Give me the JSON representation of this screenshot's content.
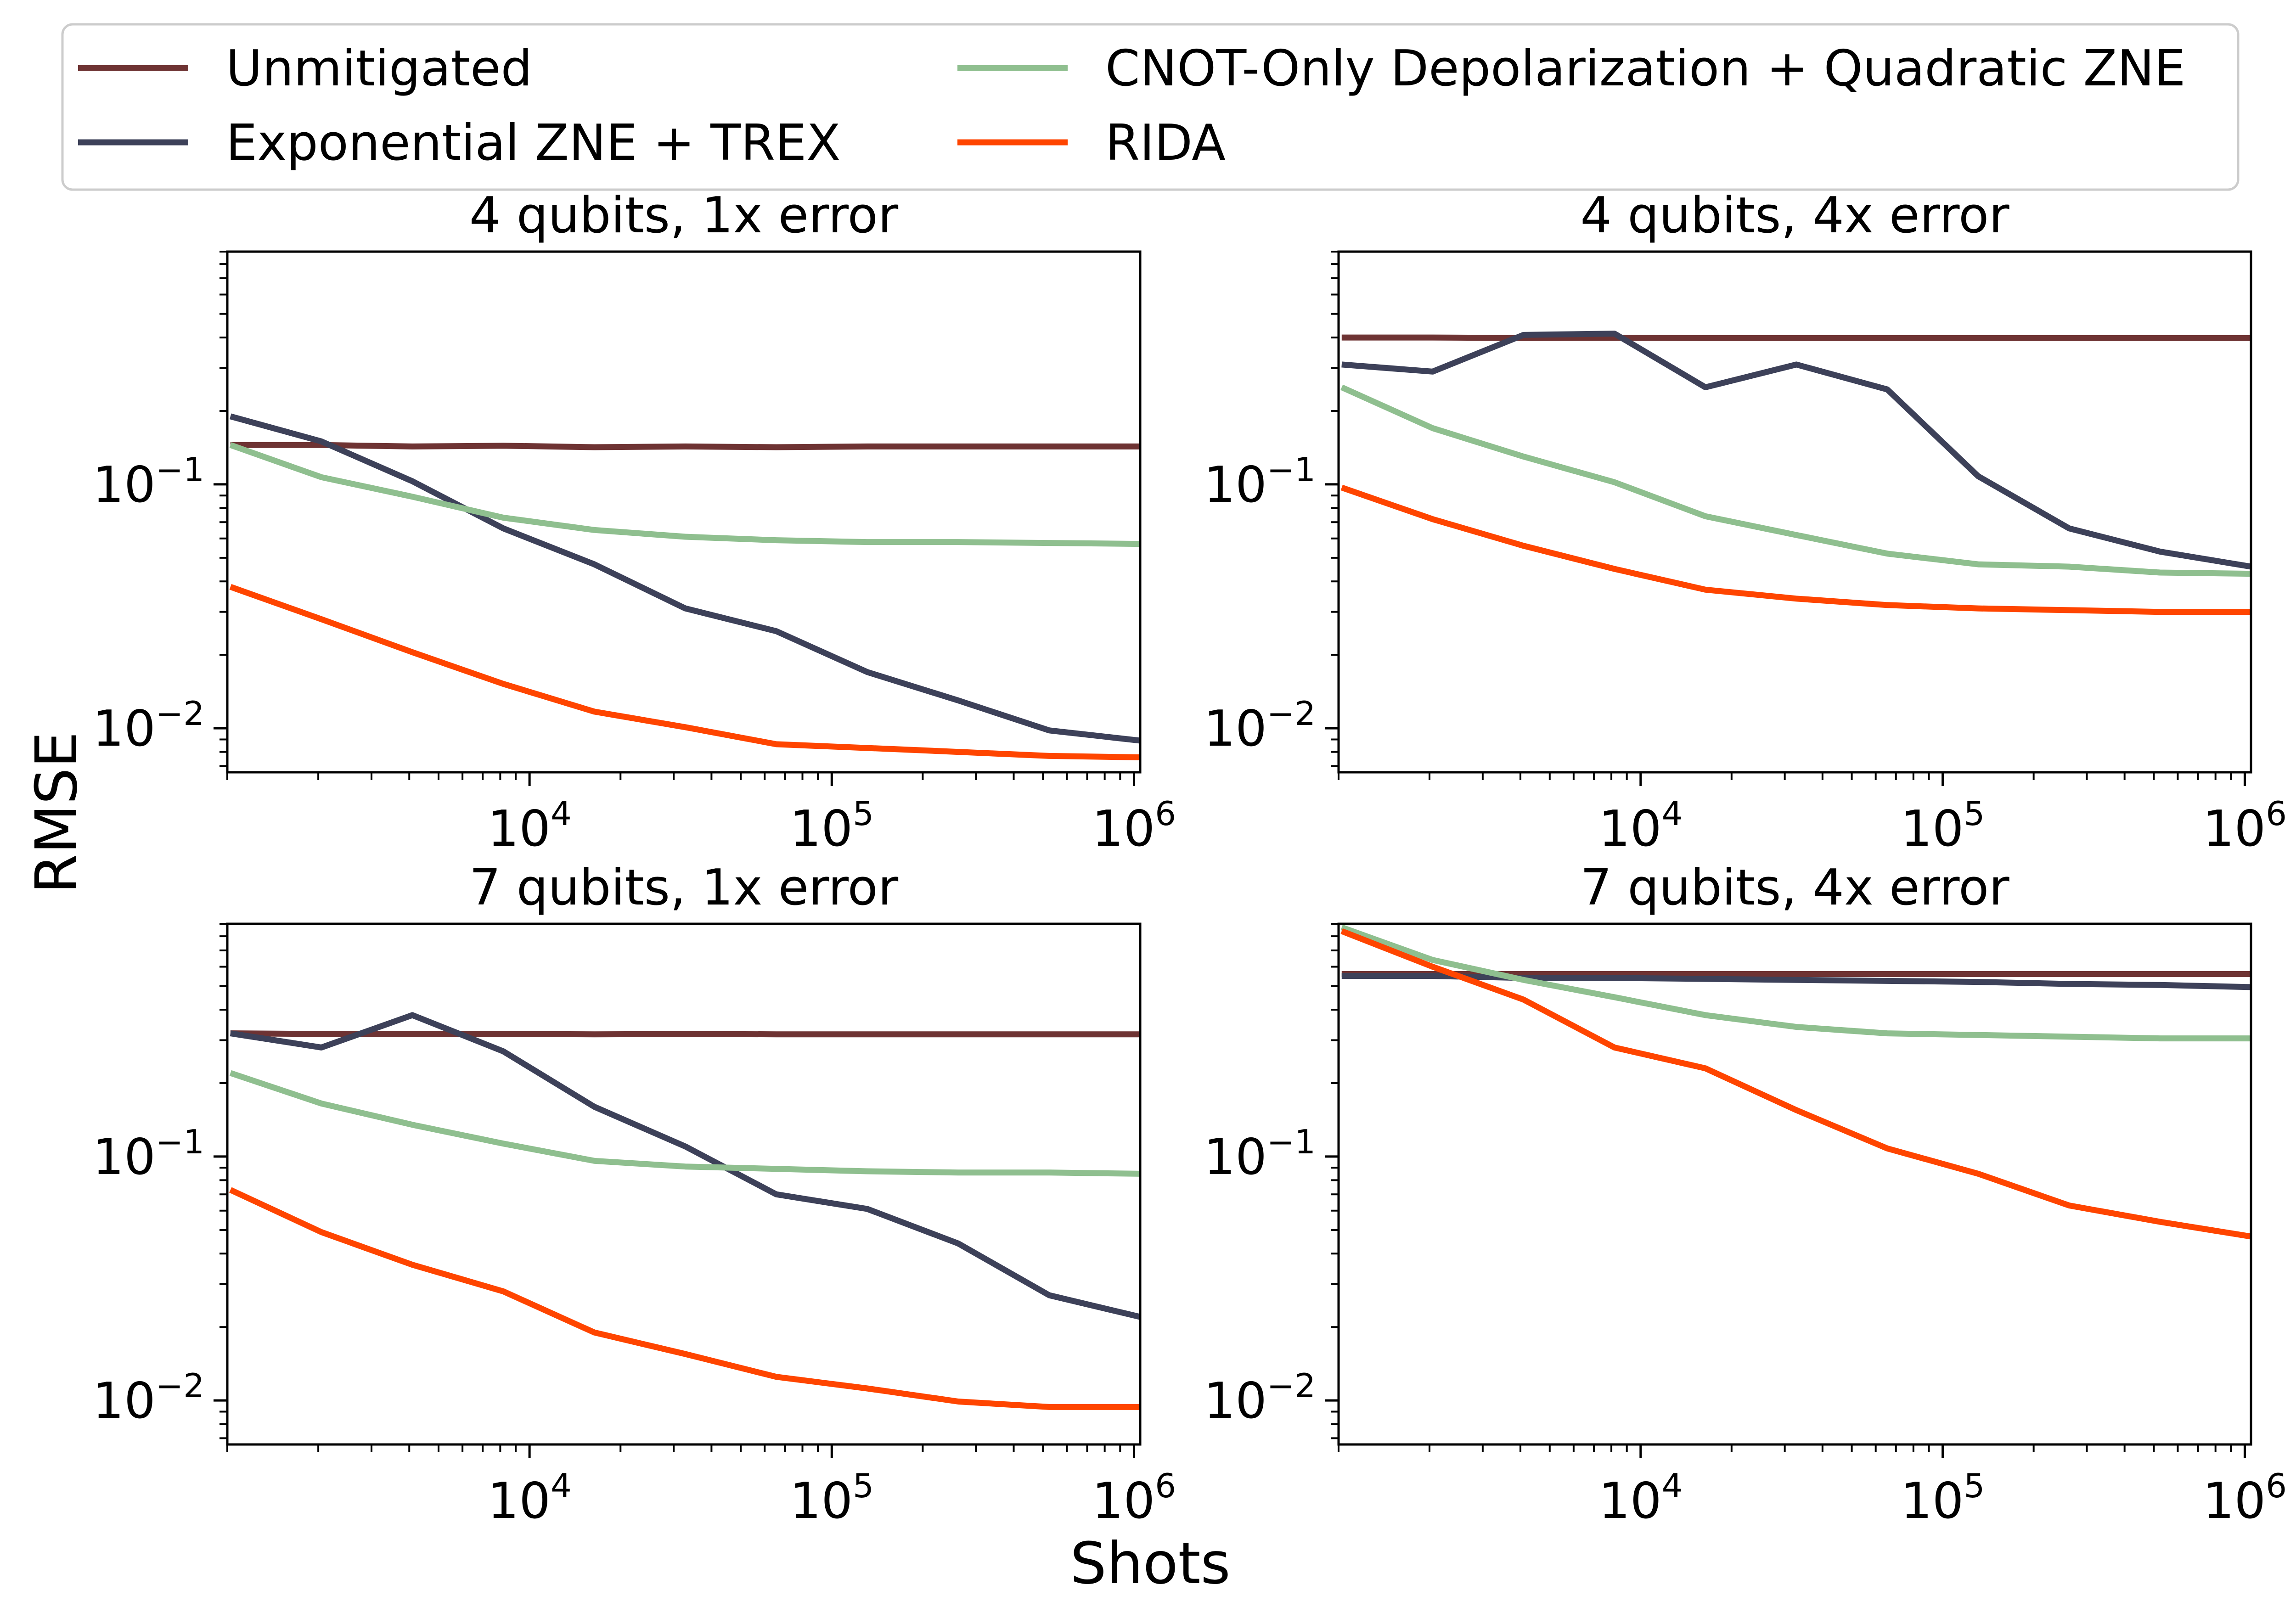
{
  "figure": {
    "xlabel": "Shots",
    "ylabel": "RMSE"
  },
  "legend": {
    "placement": "top",
    "entries": [
      {
        "name": "Unmitigated",
        "color": "#6e3333"
      },
      {
        "name": "Exponential ZNE + TREX",
        "color": "#3d4159"
      },
      {
        "name": "CNOT-Only Depolarization + Quadratic ZNE",
        "color": "#8fbf8f"
      },
      {
        "name": "RIDA",
        "color": "#ff4500"
      }
    ]
  },
  "chart_data": [
    {
      "type": "line",
      "title": "4 qubits, 1x error",
      "xscale": "log",
      "yscale": "log",
      "xlim": [
        1000,
        1048576
      ],
      "ylim": [
        0.0066,
        0.9
      ],
      "xticks": [
        "10^4",
        "10^5",
        "10^6"
      ],
      "yticks": [
        "10^-1",
        "10^-2"
      ],
      "x": [
        1024,
        2048,
        4096,
        8192,
        16384,
        32768,
        65536,
        131072,
        262144,
        524288,
        1048576
      ],
      "series": [
        {
          "name": "Unmitigated",
          "color": "#6e3333",
          "values": [
            0.145,
            0.145,
            0.143,
            0.144,
            0.142,
            0.143,
            0.142,
            0.143,
            0.143,
            0.143,
            0.143
          ]
        },
        {
          "name": "Exponential ZNE + TREX",
          "color": "#3d4159",
          "values": [
            0.19,
            0.15,
            0.103,
            0.066,
            0.047,
            0.031,
            0.025,
            0.017,
            0.013,
            0.0098,
            0.0089
          ]
        },
        {
          "name": "CNOT-Only Depolarization + Quadratic ZNE",
          "color": "#8fbf8f",
          "values": [
            0.145,
            0.107,
            0.089,
            0.073,
            0.065,
            0.061,
            0.059,
            0.058,
            0.058,
            0.0575,
            0.057
          ]
        },
        {
          "name": "RIDA",
          "color": "#ff4500",
          "values": [
            0.038,
            0.028,
            0.0205,
            0.0152,
            0.0117,
            0.0101,
            0.0086,
            0.0083,
            0.008,
            0.0077,
            0.0076
          ]
        }
      ]
    },
    {
      "type": "line",
      "title": "4 qubits, 4x error",
      "xscale": "log",
      "yscale": "log",
      "xlim": [
        1000,
        1048576
      ],
      "ylim": [
        0.0066,
        0.9
      ],
      "xticks": [
        "10^4",
        "10^5",
        "10^6"
      ],
      "yticks": [
        "10^-1",
        "10^-2"
      ],
      "x": [
        1024,
        2048,
        4096,
        8192,
        16384,
        32768,
        65536,
        131072,
        262144,
        524288,
        1048576
      ],
      "series": [
        {
          "name": "Unmitigated",
          "color": "#6e3333",
          "values": [
            0.4,
            0.4,
            0.398,
            0.399,
            0.398,
            0.398,
            0.398,
            0.398,
            0.398,
            0.398,
            0.398
          ]
        },
        {
          "name": "Exponential ZNE + TREX",
          "color": "#3d4159",
          "values": [
            0.31,
            0.29,
            0.41,
            0.415,
            0.25,
            0.31,
            0.245,
            0.108,
            0.066,
            0.053,
            0.046
          ]
        },
        {
          "name": "CNOT-Only Depolarization + Quadratic ZNE",
          "color": "#8fbf8f",
          "values": [
            0.25,
            0.17,
            0.13,
            0.102,
            0.074,
            0.062,
            0.052,
            0.047,
            0.046,
            0.0435,
            0.043
          ]
        },
        {
          "name": "RIDA",
          "color": "#ff4500",
          "values": [
            0.097,
            0.072,
            0.056,
            0.045,
            0.037,
            0.034,
            0.032,
            0.031,
            0.0305,
            0.03,
            0.03
          ]
        }
      ]
    },
    {
      "type": "line",
      "title": "7 qubits, 1x error",
      "xscale": "log",
      "yscale": "log",
      "xlim": [
        1000,
        1048576
      ],
      "ylim": [
        0.0066,
        0.9
      ],
      "xticks": [
        "10^4",
        "10^5",
        "10^6"
      ],
      "yticks": [
        "10^-1",
        "10^-2"
      ],
      "x": [
        1024,
        2048,
        4096,
        8192,
        16384,
        32768,
        65536,
        131072,
        262144,
        524288,
        1048576
      ],
      "series": [
        {
          "name": "Unmitigated",
          "color": "#6e3333",
          "values": [
            0.32,
            0.318,
            0.318,
            0.318,
            0.317,
            0.318,
            0.317,
            0.317,
            0.317,
            0.317,
            0.317
          ]
        },
        {
          "name": "Exponential ZNE + TREX",
          "color": "#3d4159",
          "values": [
            0.32,
            0.28,
            0.38,
            0.27,
            0.16,
            0.11,
            0.07,
            0.061,
            0.044,
            0.027,
            0.022
          ]
        },
        {
          "name": "CNOT-Only Depolarization + Quadratic ZNE",
          "color": "#8fbf8f",
          "values": [
            0.22,
            0.165,
            0.135,
            0.113,
            0.096,
            0.091,
            0.089,
            0.087,
            0.086,
            0.086,
            0.085
          ]
        },
        {
          "name": "RIDA",
          "color": "#ff4500",
          "values": [
            0.073,
            0.049,
            0.036,
            0.028,
            0.019,
            0.0155,
            0.0125,
            0.0112,
            0.0099,
            0.0094,
            0.0094
          ]
        }
      ]
    },
    {
      "type": "line",
      "title": "7 qubits, 4x error",
      "xscale": "log",
      "yscale": "log",
      "xlim": [
        1000,
        1048576
      ],
      "ylim": [
        0.0066,
        0.9
      ],
      "xticks": [
        "10^4",
        "10^5",
        "10^6"
      ],
      "yticks": [
        "10^-1",
        "10^-2"
      ],
      "x": [
        1024,
        2048,
        4096,
        8192,
        16384,
        32768,
        65536,
        131072,
        262144,
        524288,
        1048576
      ],
      "series": [
        {
          "name": "Unmitigated",
          "color": "#6e3333",
          "values": [
            0.56,
            0.56,
            0.56,
            0.56,
            0.56,
            0.56,
            0.56,
            0.56,
            0.56,
            0.56,
            0.56
          ]
        },
        {
          "name": "Exponential ZNE + TREX",
          "color": "#3d4159",
          "values": [
            0.55,
            0.55,
            0.54,
            0.54,
            0.535,
            0.53,
            0.525,
            0.52,
            0.51,
            0.505,
            0.495
          ]
        },
        {
          "name": "CNOT-Only Depolarization + Quadratic ZNE",
          "color": "#8fbf8f",
          "values": [
            0.87,
            0.64,
            0.53,
            0.45,
            0.38,
            0.34,
            0.32,
            0.315,
            0.31,
            0.305,
            0.305
          ]
        },
        {
          "name": "RIDA",
          "color": "#ff4500",
          "values": [
            0.84,
            0.6,
            0.44,
            0.28,
            0.23,
            0.155,
            0.108,
            0.085,
            0.063,
            0.054,
            0.047
          ]
        }
      ]
    }
  ]
}
